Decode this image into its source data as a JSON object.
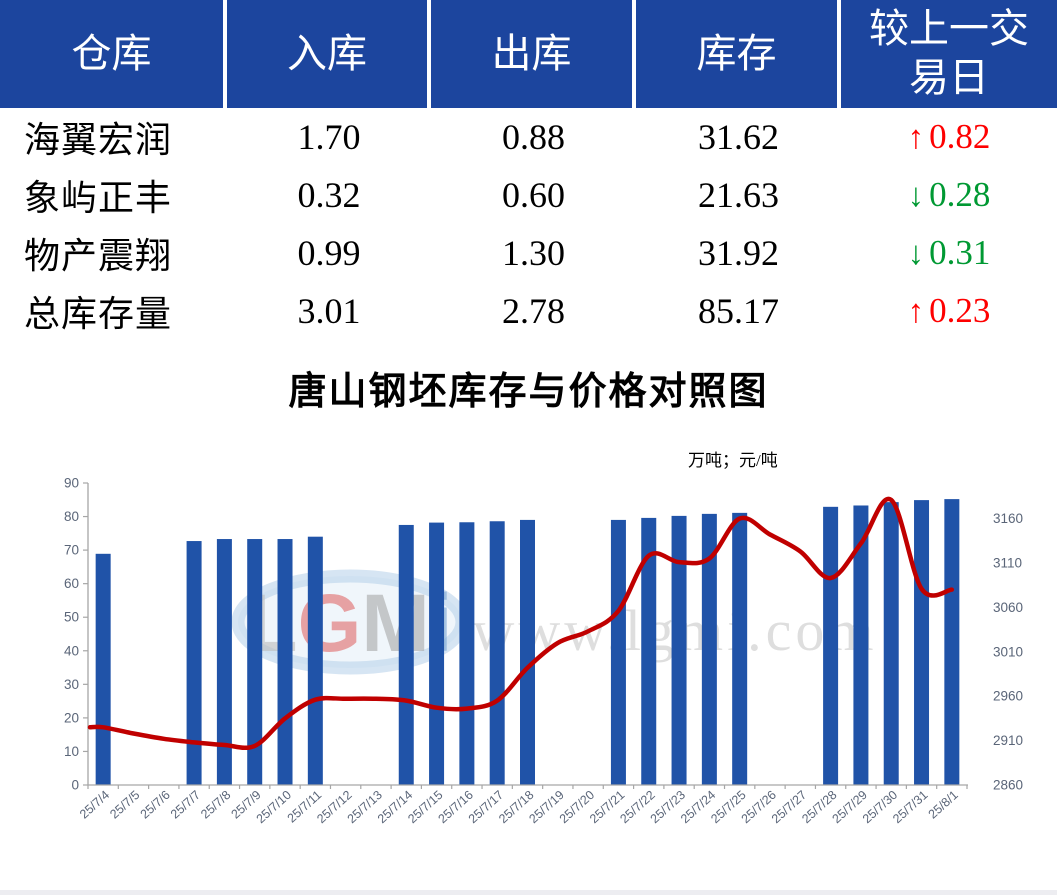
{
  "table": {
    "headers": [
      "仓库",
      "入库",
      "出库",
      "库存",
      "较上一交易日"
    ],
    "rows": [
      {
        "name": "海翼宏润",
        "inbound": "1.70",
        "outbound": "0.88",
        "stock": "31.62",
        "change": {
          "arrow": "↑",
          "value": "0.82",
          "direction": "up"
        }
      },
      {
        "name": "象屿正丰",
        "inbound": "0.32",
        "outbound": "0.60",
        "stock": "21.63",
        "change": {
          "arrow": "↓",
          "value": "0.28",
          "direction": "down"
        }
      },
      {
        "name": "物产震翔",
        "inbound": "0.99",
        "outbound": "1.30",
        "stock": "31.92",
        "change": {
          "arrow": "↓",
          "value": "0.31",
          "direction": "down"
        }
      },
      {
        "name": "总库存量",
        "inbound": "3.01",
        "outbound": "2.78",
        "stock": "85.17",
        "change": {
          "arrow": "↑",
          "value": "0.23",
          "direction": "up"
        }
      }
    ]
  },
  "chart_data": {
    "type": "bar",
    "title": "唐山钢坯库存与价格对照图",
    "unit_label": "万吨；元/吨",
    "grid": false,
    "legend": "none",
    "categories": [
      "25/7/4",
      "25/7/5",
      "25/7/6",
      "25/7/7",
      "25/7/8",
      "25/7/9",
      "25/7/10",
      "25/7/11",
      "25/7/12",
      "25/7/13",
      "25/7/14",
      "25/7/15",
      "25/7/16",
      "25/7/17",
      "25/7/18",
      "25/7/19",
      "25/7/20",
      "25/7/21",
      "25/7/22",
      "25/7/23",
      "25/7/24",
      "25/7/25",
      "25/7/26",
      "25/7/27",
      "25/7/28",
      "25/7/29",
      "25/7/30",
      "25/7/31",
      "25/8/1"
    ],
    "series": [
      {
        "name": "库存",
        "type": "bar",
        "axis": "left",
        "unit": "万吨",
        "values": [
          68.9,
          null,
          null,
          72.7,
          73.3,
          73.3,
          73.3,
          74.0,
          null,
          null,
          77.5,
          78.2,
          78.3,
          78.6,
          79.0,
          null,
          null,
          79.0,
          79.6,
          80.2,
          80.8,
          81.1,
          null,
          null,
          82.9,
          83.3,
          84.3,
          84.9,
          85.2
        ]
      },
      {
        "name": "价格",
        "type": "line",
        "axis": "right",
        "unit": "元/吨",
        "values": [
          2925,
          2918,
          2912,
          2908,
          2905,
          2904,
          2935,
          2956,
          2957,
          2957,
          2955,
          2947,
          2946,
          2955,
          2992,
          3020,
          3033,
          3056,
          3118,
          3111,
          3115,
          3160,
          3142,
          3123,
          3093,
          3132,
          3181,
          3081,
          3080
        ]
      }
    ],
    "left_axis": {
      "min": 0,
      "max": 90,
      "step": 10
    },
    "right_axis": {
      "min": 2860,
      "max": 3200,
      "step": 50,
      "top_label": 3160
    },
    "watermark": {
      "logo_text": "LGMi",
      "url_text": "www.lgmi.com"
    }
  },
  "colors": {
    "header_bg": "#1c459e",
    "bar": "#2053a8",
    "line": "#c00000",
    "up": "#fe0000",
    "down": "#009933",
    "axis_text": "#5a6578",
    "axis_line": "#a6a6a6",
    "watermark_gray": "#d9d9d9"
  }
}
